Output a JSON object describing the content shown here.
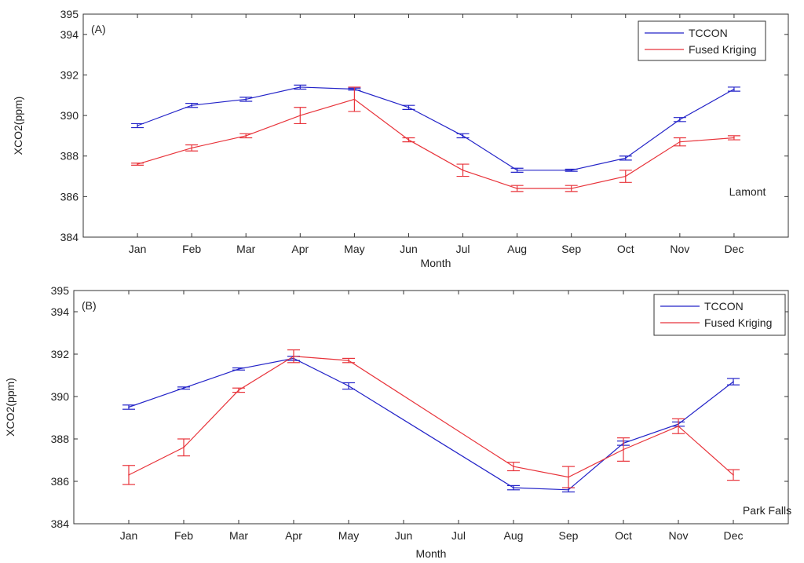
{
  "chart_data": [
    {
      "type": "line",
      "panel_label": "(A)",
      "station": "Lamont",
      "xlabel": "Month",
      "ylabel": "XCO2(ppm)",
      "ylim": [
        384,
        395
      ],
      "yticks": [
        384,
        386,
        388,
        390,
        392,
        394,
        395
      ],
      "categories": [
        "Jan",
        "Feb",
        "Mar",
        "Apr",
        "May",
        "Jun",
        "Jul",
        "Aug",
        "Sep",
        "Oct",
        "Nov",
        "Dec"
      ],
      "legend_position": "top-right",
      "series": [
        {
          "name": "TCCON",
          "color": "#2323c8",
          "x": [
            "Jan",
            "Feb",
            "Mar",
            "Apr",
            "May",
            "Jun",
            "Jul",
            "Aug",
            "Sep",
            "Oct",
            "Nov",
            "Dec"
          ],
          "values": [
            389.5,
            390.5,
            390.8,
            391.4,
            391.3,
            390.4,
            389.0,
            387.3,
            387.3,
            387.9,
            389.8,
            391.3
          ],
          "errors": [
            0.1,
            0.1,
            0.1,
            0.1,
            0.05,
            0.1,
            0.1,
            0.1,
            0.05,
            0.1,
            0.1,
            0.1
          ]
        },
        {
          "name": "Fused Kriging",
          "color": "#e8333a",
          "x": [
            "Jan",
            "Feb",
            "Mar",
            "Apr",
            "May",
            "Jun",
            "Jul",
            "Aug",
            "Sep",
            "Oct",
            "Nov",
            "Dec"
          ],
          "values": [
            387.6,
            388.4,
            389.0,
            390.0,
            390.8,
            388.8,
            387.3,
            386.4,
            386.4,
            387.0,
            388.7,
            388.9
          ],
          "errors": [
            0.05,
            0.15,
            0.1,
            0.4,
            0.6,
            0.1,
            0.3,
            0.15,
            0.15,
            0.3,
            0.2,
            0.1
          ]
        }
      ]
    },
    {
      "type": "line",
      "panel_label": "(B)",
      "station": "Park Falls",
      "xlabel": "Month",
      "ylabel": "XCO2(ppm)",
      "ylim": [
        384,
        395
      ],
      "yticks": [
        384,
        386,
        388,
        390,
        392,
        394,
        395
      ],
      "categories": [
        "Jan",
        "Feb",
        "Mar",
        "Apr",
        "May",
        "Jun",
        "Jul",
        "Aug",
        "Sep",
        "Oct",
        "Nov",
        "Dec"
      ],
      "legend_position": "top-right",
      "series": [
        {
          "name": "TCCON",
          "color": "#2323c8",
          "x": [
            "Jan",
            "Feb",
            "Mar",
            "Apr",
            "May",
            "Aug",
            "Sep",
            "Oct",
            "Nov",
            "Dec"
          ],
          "values": [
            389.5,
            390.4,
            391.3,
            391.8,
            390.5,
            385.7,
            385.6,
            387.8,
            388.7,
            390.7
          ],
          "errors": [
            0.1,
            0.05,
            0.05,
            0.1,
            0.15,
            0.1,
            0.1,
            0.1,
            0.1,
            0.15
          ]
        },
        {
          "name": "Fused Kriging",
          "color": "#e8333a",
          "x": [
            "Jan",
            "Feb",
            "Mar",
            "Apr",
            "May",
            "Aug",
            "Sep",
            "Oct",
            "Nov",
            "Dec"
          ],
          "values": [
            386.3,
            387.6,
            390.3,
            391.9,
            391.7,
            386.7,
            386.2,
            387.5,
            388.6,
            386.3
          ],
          "errors": [
            0.45,
            0.4,
            0.1,
            0.3,
            0.1,
            0.2,
            0.5,
            0.55,
            0.35,
            0.25
          ]
        }
      ]
    }
  ]
}
